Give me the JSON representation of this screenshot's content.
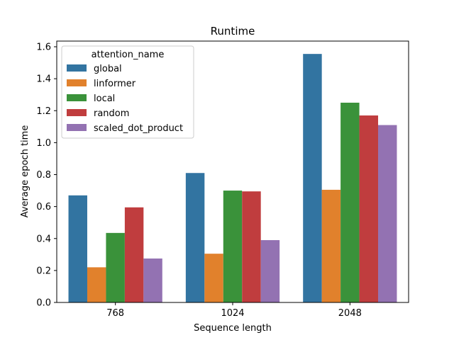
{
  "chart_data": {
    "type": "bar",
    "title": "Runtime",
    "xlabel": "Sequence length",
    "ylabel": "Average epoch time",
    "categories": [
      "768",
      "1024",
      "2048"
    ],
    "ylim": [
      0,
      1.6
    ],
    "yticks": [
      "0.0",
      "0.2",
      "0.4",
      "0.6",
      "0.8",
      "1.0",
      "1.2",
      "1.4",
      "1.6"
    ],
    "grid": false,
    "legend": {
      "title": "attention_name",
      "placement": "top-left"
    },
    "series": [
      {
        "name": "global",
        "color": "#3274a1",
        "values": [
          0.67,
          0.81,
          1.555
        ]
      },
      {
        "name": "linformer",
        "color": "#e1812c",
        "values": [
          0.22,
          0.305,
          0.705
        ]
      },
      {
        "name": "local",
        "color": "#3a923a",
        "values": [
          0.435,
          0.7,
          1.25
        ]
      },
      {
        "name": "random",
        "color": "#c03d3e",
        "values": [
          0.595,
          0.695,
          1.17
        ]
      },
      {
        "name": "scaled_dot_product",
        "color": "#9372b2",
        "values": [
          0.275,
          0.39,
          1.11
        ]
      }
    ]
  }
}
